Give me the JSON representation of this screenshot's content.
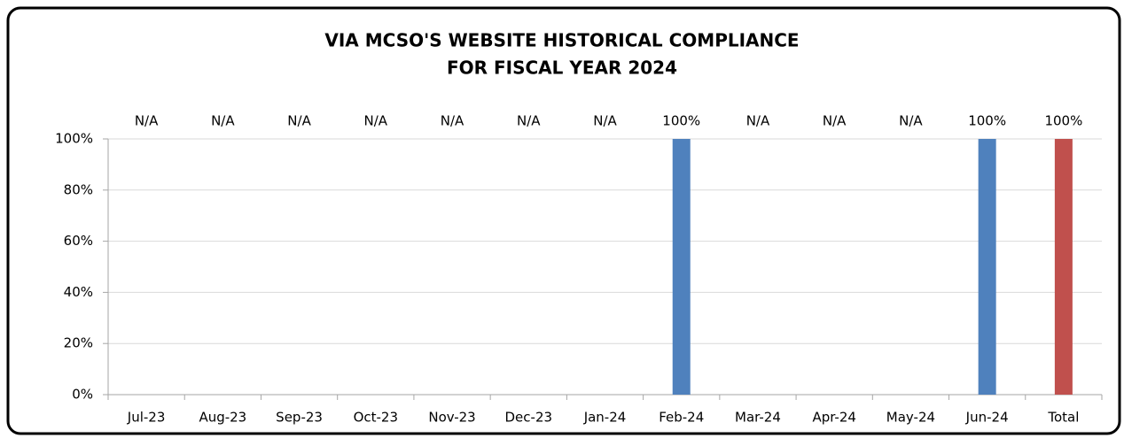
{
  "chart_data": {
    "type": "bar",
    "title": [
      "VIA MCSO'S WEBSITE HISTORICAL COMPLIANCE",
      "FOR FISCAL YEAR 2024"
    ],
    "categories": [
      "Jul-23",
      "Aug-23",
      "Sep-23",
      "Oct-23",
      "Nov-23",
      "Dec-23",
      "Jan-24",
      "Feb-24",
      "Mar-24",
      "Apr-24",
      "May-24",
      "Jun-24",
      "Total"
    ],
    "values": [
      null,
      null,
      null,
      null,
      null,
      null,
      null,
      100,
      null,
      null,
      null,
      100,
      100
    ],
    "value_labels": [
      "N/A",
      "N/A",
      "N/A",
      "N/A",
      "N/A",
      "N/A",
      "N/A",
      "100%",
      "N/A",
      "N/A",
      "N/A",
      "100%",
      "100%"
    ],
    "colors": [
      "#4f81bd",
      "#4f81bd",
      "#4f81bd",
      "#4f81bd",
      "#4f81bd",
      "#4f81bd",
      "#4f81bd",
      "#4f81bd",
      "#4f81bd",
      "#4f81bd",
      "#4f81bd",
      "#4f81bd",
      "#c0504d"
    ],
    "ylim": [
      0,
      100
    ],
    "yticks": [
      {
        "value": 0,
        "label": "0%"
      },
      {
        "value": 20,
        "label": "20%"
      },
      {
        "value": 40,
        "label": "40%"
      },
      {
        "value": 60,
        "label": "60%"
      },
      {
        "value": 80,
        "label": "80%"
      },
      {
        "value": 100,
        "label": "100%"
      }
    ],
    "grid": true
  }
}
